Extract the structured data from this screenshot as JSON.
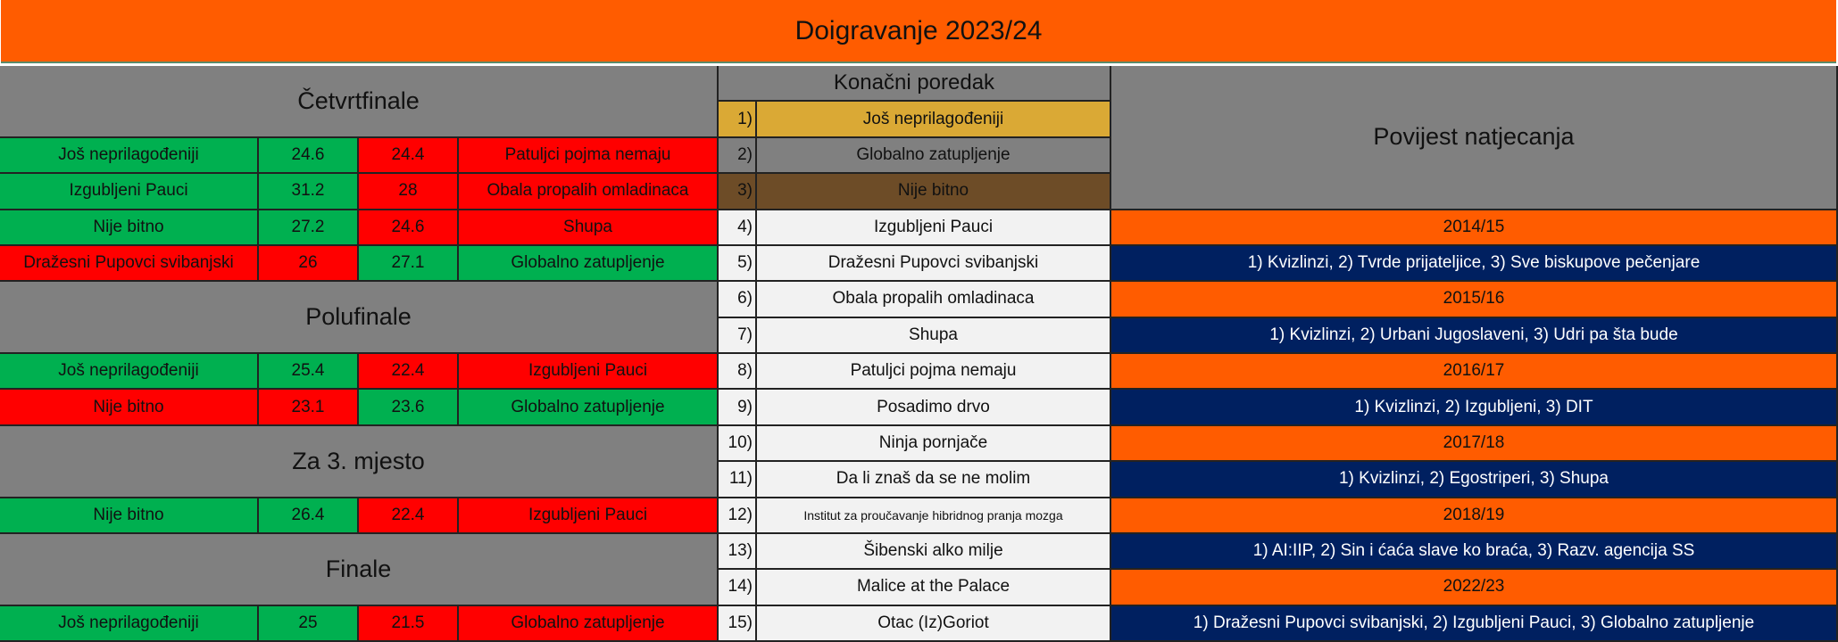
{
  "title": "Doigravanje 2023/24",
  "colors": {
    "win": "#00B050",
    "loss": "#FF0000",
    "header": "#808080",
    "orange": "#FF5C00",
    "navy": "#002060",
    "gold": "#DAA935",
    "bronze": "#6D4C27"
  },
  "bracket": [
    {
      "name": "Četvrtfinale",
      "matches": [
        {
          "team1": "Još neprilagođeniji",
          "score1": "24.6",
          "score2": "24.4",
          "team2": "Patuljci pojma nemaju",
          "winner": 1
        },
        {
          "team1": "Izgubljeni Pauci",
          "score1": "31.2",
          "score2": "28",
          "team2": "Obala propalih omladinaca",
          "winner": 1
        },
        {
          "team1": "Nije bitno",
          "score1": "27.2",
          "score2": "24.6",
          "team2": "Shupa",
          "winner": 1
        },
        {
          "team1": "Dražesni Pupovci svibanjski",
          "score1": "26",
          "score2": "27.1",
          "team2": "Globalno zatupljenje",
          "winner": 2
        }
      ]
    },
    {
      "name": "Polufinale",
      "matches": [
        {
          "team1": "Još neprilagođeniji",
          "score1": "25.4",
          "score2": "22.4",
          "team2": "Izgubljeni Pauci",
          "winner": 1
        },
        {
          "team1": "Nije bitno",
          "score1": "23.1",
          "score2": "23.6",
          "team2": "Globalno zatupljenje",
          "winner": 2
        }
      ]
    },
    {
      "name": "Za 3. mjesto",
      "matches": [
        {
          "team1": "Nije bitno",
          "score1": "26.4",
          "score2": "22.4",
          "team2": "Izgubljeni Pauci",
          "winner": 1
        }
      ]
    },
    {
      "name": "Finale",
      "matches": [
        {
          "team1": "Još neprilagođeniji",
          "score1": "25",
          "score2": "21.5",
          "team2": "Globalno zatupljenje",
          "winner": 1
        }
      ]
    }
  ],
  "standings": {
    "header": "Konačni poredak",
    "rows": [
      {
        "rank": "1)",
        "team": "Još neprilagođeniji"
      },
      {
        "rank": "2)",
        "team": "Globalno zatupljenje"
      },
      {
        "rank": "3)",
        "team": "Nije bitno"
      },
      {
        "rank": "4)",
        "team": "Izgubljeni Pauci"
      },
      {
        "rank": "5)",
        "team": "Dražesni Pupovci svibanjski"
      },
      {
        "rank": "6)",
        "team": "Obala propalih omladinaca"
      },
      {
        "rank": "7)",
        "team": "Shupa"
      },
      {
        "rank": "8)",
        "team": "Patuljci pojma nemaju"
      },
      {
        "rank": "9)",
        "team": "Posadimo drvo"
      },
      {
        "rank": "10)",
        "team": "Ninja pornjače"
      },
      {
        "rank": "11)",
        "team": "Da li znaš da se ne molim"
      },
      {
        "rank": "12)",
        "team": "Institut za proučavanje hibridnog pranja mozga"
      },
      {
        "rank": "13)",
        "team": "Šibenski alko milje"
      },
      {
        "rank": "14)",
        "team": "Malice at the Palace"
      },
      {
        "rank": "15)",
        "team": "Otac (Iz)Goriot"
      }
    ]
  },
  "history": {
    "header": "Povijest natjecanja",
    "seasons": [
      {
        "season": "2014/15",
        "podium": "1) Kvizlinzi, 2) Tvrde prijateljice, 3) Sve biskupove pečenjare"
      },
      {
        "season": "2015/16",
        "podium": "1) Kvizlinzi, 2) Urbani Jugoslaveni, 3) Udri pa šta bude"
      },
      {
        "season": "2016/17",
        "podium": "1) Kvizlinzi, 2) Izgubljeni, 3) DIT"
      },
      {
        "season": "2017/18",
        "podium": "1) Kvizlinzi, 2) Egostriperi, 3) Shupa"
      },
      {
        "season": "2018/19",
        "podium": "1) AI:IIP, 2) Sin i ćaća slave ko braća, 3) Razv. agencija SS"
      },
      {
        "season": "2022/23",
        "podium": "1) Dražesni Pupovci svibanjski, 2) Izgubljeni Pauci, 3) Globalno zatupljenje"
      }
    ]
  }
}
